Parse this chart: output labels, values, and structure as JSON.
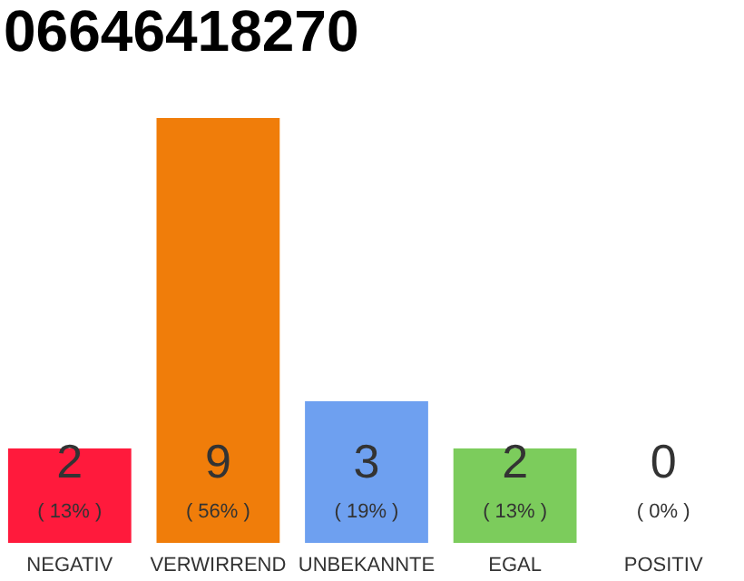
{
  "chart_data": {
    "type": "bar",
    "title": "06646418270",
    "categories": [
      "NEGATIV",
      "VERWIRREND",
      "UNBEKANNTE",
      "EGAL",
      "POSITIV"
    ],
    "values": [
      2,
      9,
      3,
      2,
      0
    ],
    "colors": [
      "#ff1a3c",
      "#f07d0a",
      "#6ea0f0",
      "#7ccc5c",
      "#cccccc"
    ],
    "data_labels": true,
    "annotations": [
      "( 13% )",
      "( 56% )",
      "( 19% )",
      "( 13% )",
      "( 0% )"
    ],
    "grid": false
  }
}
